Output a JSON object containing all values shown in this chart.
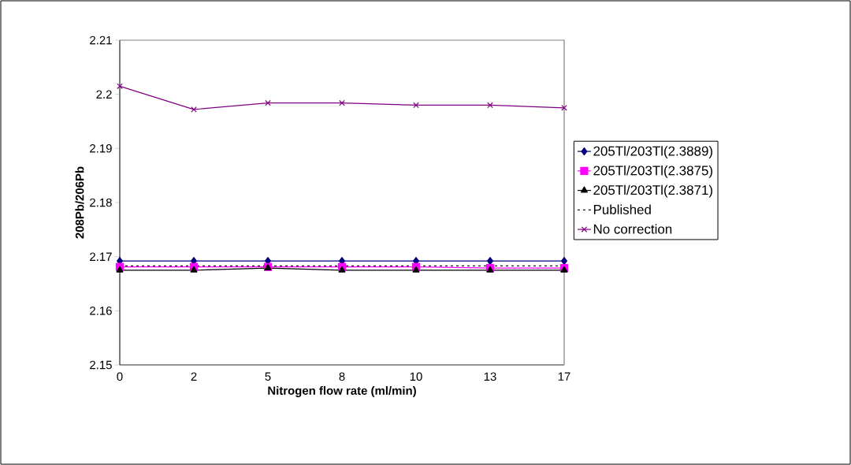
{
  "chart_data": {
    "type": "line",
    "xlabel": "Nitrogen flow rate (ml/min)",
    "ylabel": "208Pb/206Pb",
    "categories": [
      "0",
      "2",
      "5",
      "8",
      "10",
      "13",
      "17"
    ],
    "ylim": [
      2.15,
      2.21
    ],
    "yticks": [
      2.15,
      2.16,
      2.17,
      2.18,
      2.19,
      2.2,
      2.21
    ],
    "grid": false,
    "legend": "right",
    "series": [
      {
        "name": "205Tl/203Tl(2.3889)",
        "color": "#000080",
        "marker": "diamond",
        "line_style": "solid",
        "values": [
          2.1692,
          2.1692,
          2.1692,
          2.1692,
          2.1692,
          2.1692,
          2.1692
        ]
      },
      {
        "name": "205Tl/203Tl(2.3875)",
        "color": "#ff00ff",
        "marker": "square",
        "line_style": "solid",
        "values": [
          2.1681,
          2.1681,
          2.1681,
          2.1681,
          2.1681,
          2.1679,
          2.1679
        ]
      },
      {
        "name": "205Tl/203Tl(2.3871)",
        "color": "#000000",
        "marker": "triangle",
        "line_style": "solid",
        "values": [
          2.1675,
          2.1675,
          2.1679,
          2.1675,
          2.1675,
          2.1675,
          2.1675
        ]
      },
      {
        "name": "Published",
        "color": "#1a1a1a",
        "marker": "none",
        "line_style": "dotted",
        "values": [
          2.1683,
          2.1683,
          2.1683,
          2.1683,
          2.1683,
          2.1683,
          2.1683
        ]
      },
      {
        "name": "No correction",
        "color": "#800080",
        "marker": "cross",
        "line_style": "solid",
        "values": [
          2.2015,
          2.1972,
          2.1984,
          2.1984,
          2.198,
          2.198,
          2.1975
        ]
      }
    ]
  }
}
